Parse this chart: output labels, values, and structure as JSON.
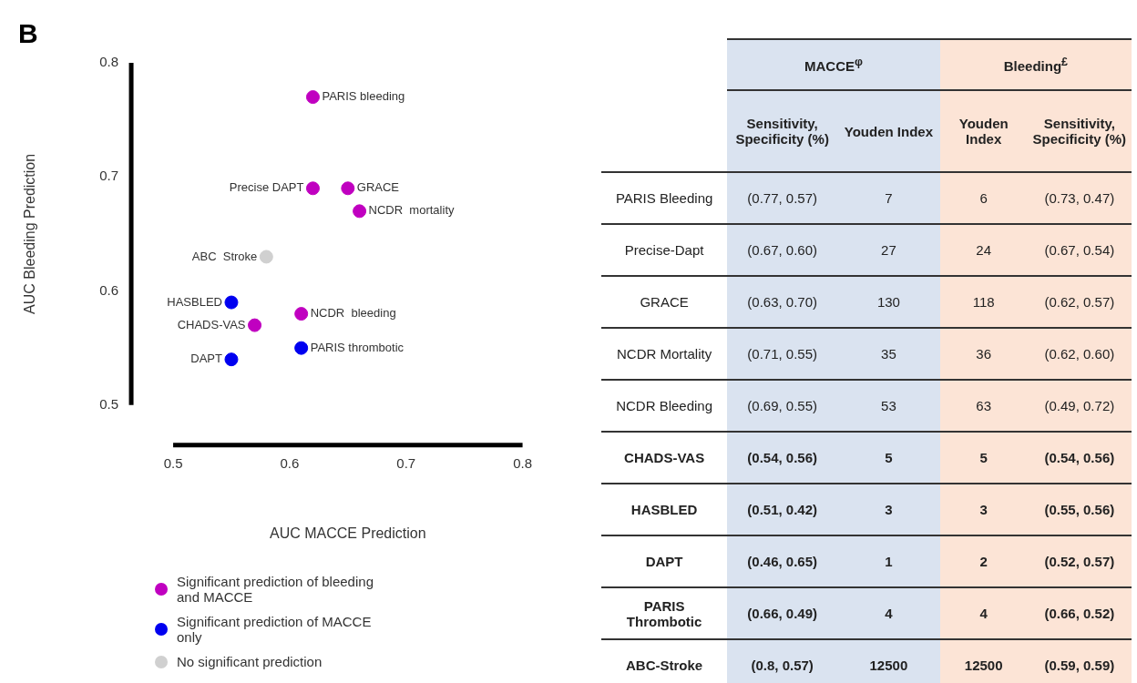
{
  "chart_data": [
    {
      "type": "scatter",
      "title": "B",
      "xlabel": "AUC MACCE Prediction",
      "ylabel": "AUC Bleeding Prediction",
      "xlim": [
        0.5,
        0.8
      ],
      "xticks": [
        0.5,
        0.6,
        0.7,
        0.8
      ],
      "ylim": [
        0.5,
        0.8
      ],
      "yticks": [
        0.5,
        0.6,
        0.7,
        0.8
      ],
      "grid": false,
      "legend": "bottom",
      "marker": "circle",
      "series": [
        {
          "name": "Significant prediction of bleeding and MACCE",
          "color": "#c000c0",
          "x": [
            0.62,
            0.62,
            0.65,
            0.66,
            0.61,
            0.57
          ],
          "values": [
            0.77,
            0.69,
            0.69,
            0.67,
            0.58,
            0.57
          ]
        },
        {
          "name": "Significant prediction of MACCE only",
          "color": "#0000f0",
          "x": [
            0.55,
            0.55,
            0.61
          ],
          "values": [
            0.59,
            0.54,
            0.55
          ]
        },
        {
          "name": "No significant prediction",
          "color": "#d0d0d0",
          "x": [
            0.58
          ],
          "values": [
            0.63
          ]
        }
      ],
      "annotations": [
        {
          "text": "PARIS bleeding",
          "x": 0.62,
          "y": 0.77
        },
        {
          "text": "Precise DAPT",
          "x": 0.62,
          "y": 0.69
        },
        {
          "text": "GRACE",
          "x": 0.65,
          "y": 0.69
        },
        {
          "text": "NCDR  mortality",
          "x": 0.66,
          "y": 0.67
        },
        {
          "text": "NCDR  bleeding",
          "x": 0.61,
          "y": 0.58
        },
        {
          "text": "CHADS-VAS",
          "x": 0.57,
          "y": 0.57
        },
        {
          "text": "HASBLED",
          "x": 0.55,
          "y": 0.59
        },
        {
          "text": "DAPT",
          "x": 0.55,
          "y": 0.54
        },
        {
          "text": "PARIS thrombotic",
          "x": 0.61,
          "y": 0.55
        },
        {
          "text": "ABC  Stroke",
          "x": 0.58,
          "y": 0.63
        }
      ]
    },
    {
      "type": "other",
      "annotations": [
        "MACCE$^{φ}$",
        "Bleeding$^{£}$",
        "Sensitivity, Specificity (%)",
        "Youden Index",
        "Youden Index",
        "Sensitivity, Specificity (%)",
        "PARIS Bleeding",
        "(0.77, 0.57)",
        "7",
        "6",
        "(0.73, 0.47)",
        "Precise-Dapt",
        "(0.67, 0.60)",
        "27",
        "24",
        "(0.67, 0.54)",
        "GRACE",
        "(0.63, 0.70)",
        "130",
        "118",
        "(0.62, 0.57)",
        "NCDR Mortality",
        "(0.71, 0.55)",
        "35",
        "36",
        "(0.62, 0.60)",
        "NCDR Bleeding",
        "(0.69, 0.55)",
        "53",
        "63",
        "(0.49, 0.72)",
        "CHADS-VAS",
        "(0.54, 0.56)",
        "5",
        "5",
        "(0.54, 0.56)",
        "HASBLED",
        "(0.51, 0.42)",
        "3",
        "3",
        "(0.55, 0.56)",
        "DAPT",
        "(0.46, 0.65)",
        "1",
        "2",
        "(0.52, 0.57)",
        "PARIS Thrombotic",
        "(0.66, 0.49)",
        "4",
        "4",
        "(0.66, 0.52)",
        "ABC-Stroke",
        "(0.8, 0.57)",
        "12500",
        "12500",
        "(0.59, 0.59)"
      ]
    }
  ]
}
